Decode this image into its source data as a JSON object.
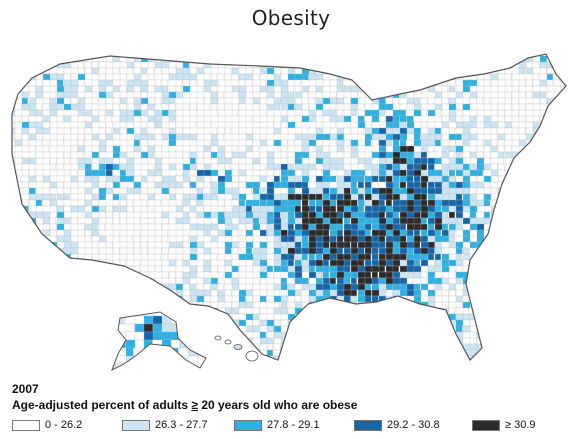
{
  "title": "Obesity",
  "year": "2007",
  "caption": {
    "before": "Age-adjusted percent of adults",
    "symbol": "≥",
    "after": "20 years old who are obese"
  },
  "legend": [
    {
      "label": "0 - 26.2",
      "color": "#ffffff",
      "level": 0
    },
    {
      "label": "26.3 - 27.7",
      "color": "#cce5f4",
      "level": 1
    },
    {
      "label": "27.8 - 29.1",
      "color": "#2eb1e2",
      "level": 2
    },
    {
      "label": "29.2 - 30.8",
      "color": "#1565a8",
      "level": 3
    },
    {
      "label": "≥ 30.9",
      "color": "#2b2b2b",
      "level": 4
    }
  ],
  "colors": {
    "land_background": "#ffffff",
    "county_border": "#b7b7b7",
    "state_border": "#555555"
  }
}
